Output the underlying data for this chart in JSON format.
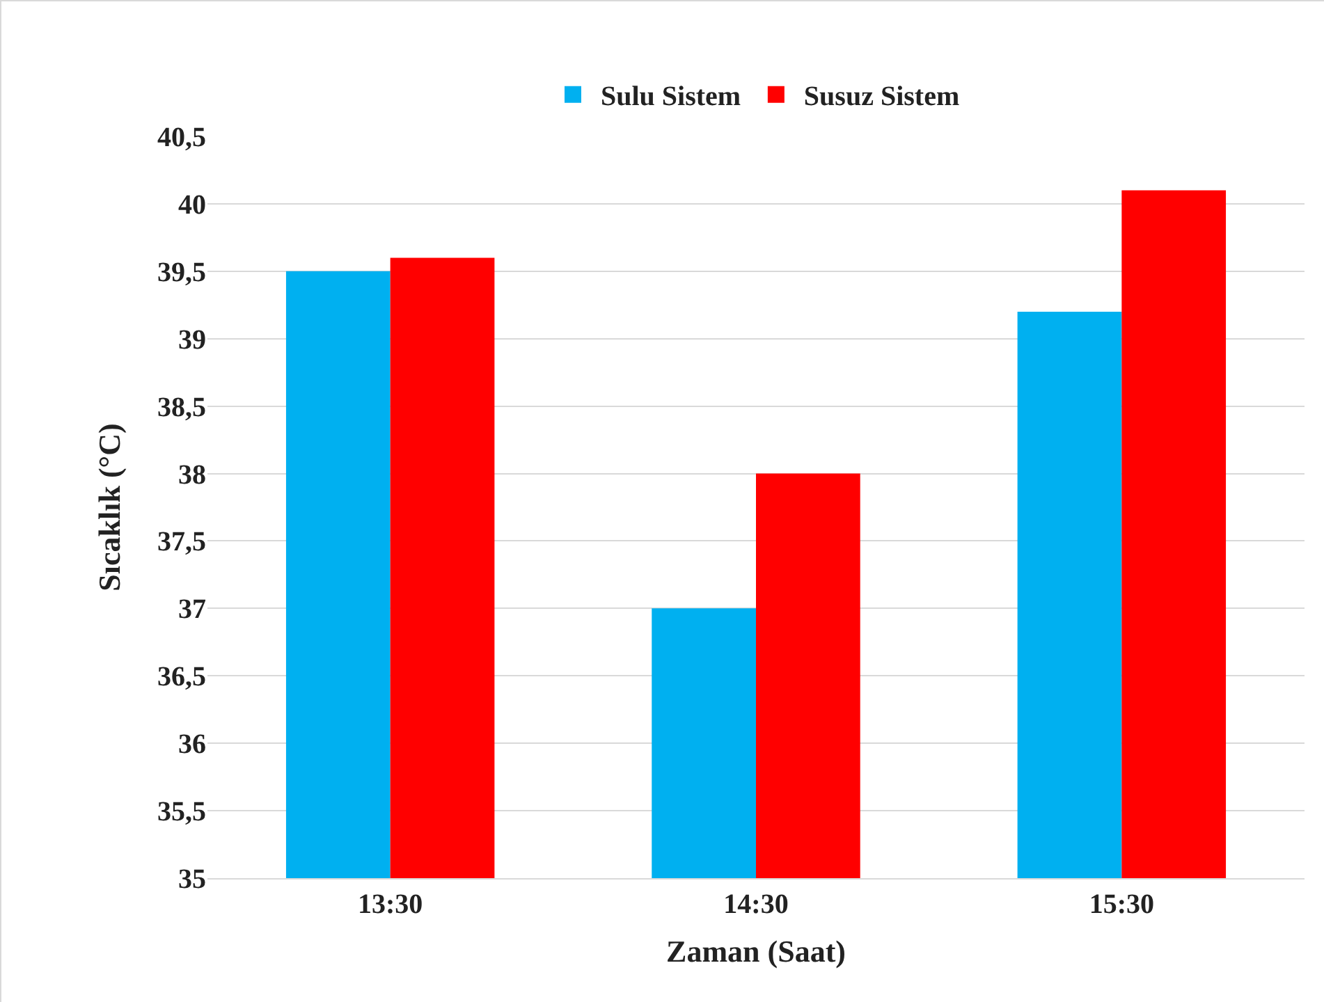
{
  "chart_data": {
    "type": "bar",
    "xlabel": "Zaman (Saat)",
    "ylabel": "Sıcaklık (°C)",
    "categories": [
      "13:30",
      "14:30",
      "15:30"
    ],
    "series": [
      {
        "name": "Sulu Sistem",
        "color": "#00b0f0",
        "values": [
          39.5,
          37,
          39.2
        ]
      },
      {
        "name": "Susuz Sistem",
        "color": "#ff0000",
        "values": [
          39.6,
          38,
          40.1
        ]
      }
    ],
    "ylim": [
      35,
      40.5
    ],
    "yticks": [
      35,
      {
        "value": 35.5,
        "label": "35,5"
      },
      36,
      {
        "value": 36.5,
        "label": "36,5"
      },
      37,
      {
        "value": 37.5,
        "label": "37,5"
      },
      38,
      {
        "value": 38.5,
        "label": "38,5"
      },
      39,
      {
        "value": 39.5,
        "label": "39,5"
      },
      40,
      {
        "value": 40.5,
        "label": "40,5"
      }
    ],
    "grid": "y",
    "legend": "top"
  }
}
